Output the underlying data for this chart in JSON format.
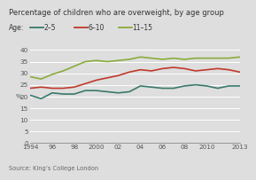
{
  "title": "Percentage of children who are overweight, by age group",
  "ylabel": "%",
  "source": "Source: King’s College London",
  "series": {
    "2-5": {
      "color": "#3a7a6a",
      "label": "2–5",
      "years": [
        1994,
        1995,
        1996,
        1997,
        1998,
        1999,
        2000,
        2001,
        2002,
        2003,
        2004,
        2005,
        2006,
        2007,
        2008,
        2009,
        2010,
        2011,
        2012,
        2013
      ],
      "values": [
        20.5,
        19.0,
        21.5,
        21.0,
        21.0,
        22.5,
        22.5,
        22.0,
        21.5,
        22.0,
        24.5,
        24.0,
        23.5,
        23.5,
        24.5,
        25.0,
        24.5,
        23.5,
        24.5,
        24.5
      ]
    },
    "6-10": {
      "color": "#c0392b",
      "label": "6–10",
      "years": [
        1994,
        1995,
        1996,
        1997,
        1998,
        1999,
        2000,
        2001,
        2002,
        2003,
        2004,
        2005,
        2006,
        2007,
        2008,
        2009,
        2010,
        2011,
        2012,
        2013
      ],
      "values": [
        23.5,
        24.0,
        23.5,
        23.5,
        24.0,
        25.5,
        27.0,
        28.0,
        29.0,
        30.5,
        31.5,
        31.0,
        32.0,
        32.5,
        32.0,
        31.0,
        31.5,
        32.0,
        31.5,
        30.5
      ]
    },
    "11-15": {
      "color": "#8aab3c",
      "label": "11–15",
      "years": [
        1994,
        1995,
        1996,
        1997,
        1998,
        1999,
        2000,
        2001,
        2002,
        2003,
        2004,
        2005,
        2006,
        2007,
        2008,
        2009,
        2010,
        2011,
        2012,
        2013
      ],
      "values": [
        28.5,
        27.5,
        29.5,
        31.0,
        33.0,
        35.0,
        35.5,
        35.0,
        35.5,
        36.0,
        37.0,
        36.5,
        36.0,
        36.5,
        36.0,
        36.5,
        36.5,
        36.5,
        36.5,
        37.0
      ]
    }
  },
  "xlim": [
    1994,
    2013
  ],
  "ylim": [
    0,
    42
  ],
  "yticks": [
    0,
    5,
    10,
    15,
    20,
    25,
    30,
    35,
    40
  ],
  "xticks": [
    1994,
    1996,
    1998,
    2000,
    2002,
    2004,
    2006,
    2008,
    2010,
    2013
  ],
  "xticklabels": [
    "1994",
    "96",
    "98",
    "2000",
    "02",
    "04",
    "06",
    "08",
    "2010",
    "2013"
  ],
  "bg_color": "#dedede",
  "plot_bg_color": "#dedede",
  "grid_color": "#ffffff",
  "title_fontsize": 6.0,
  "axis_fontsize": 5.2,
  "legend_fontsize": 5.5,
  "source_fontsize": 4.8,
  "line_width": 1.2
}
